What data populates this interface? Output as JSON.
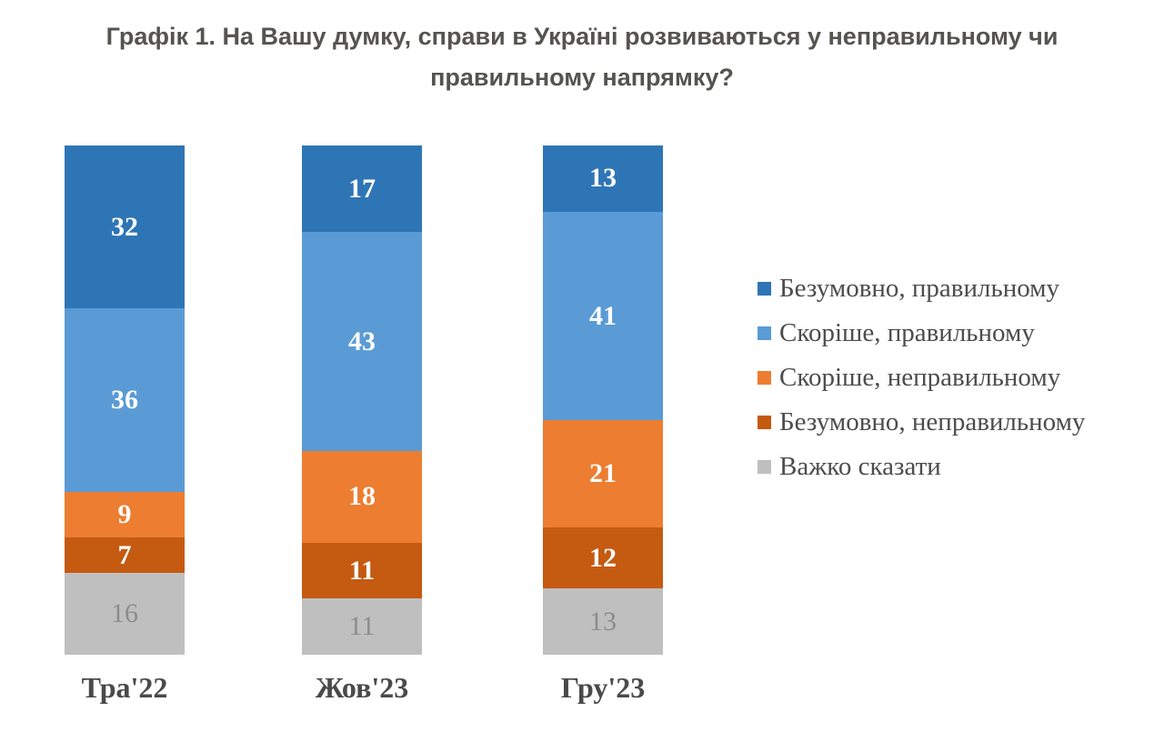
{
  "title": "Графік 1. На Вашу думку, справи в Україні розвиваються у неправильному чи правильному напрямку?",
  "colors": {
    "title_text": "#555450",
    "category_text": "#4a4a4a",
    "legend_text": "#4d4d4d",
    "background": "#ffffff"
  },
  "chart_data": {
    "type": "bar",
    "stacked": true,
    "stack_total": 100,
    "ylim": [
      0,
      100
    ],
    "grid": false,
    "legend_position": "right",
    "categories": [
      "Тра'22",
      "Жов'23",
      "Гру'23"
    ],
    "series": [
      {
        "name": "Безумовно, правильному",
        "color": "#2E75B6",
        "value_label_color": "#FFFFFF",
        "values": [
          32,
          17,
          13
        ]
      },
      {
        "name": "Скоріше, правильному",
        "color": "#5B9BD5",
        "value_label_color": "#FFFFFF",
        "values": [
          36,
          43,
          41
        ]
      },
      {
        "name": "Скоріше, неправильному",
        "color": "#ED7D31",
        "value_label_color": "#FFFFFF",
        "values": [
          9,
          18,
          21
        ]
      },
      {
        "name": "Безумовно, неправильному",
        "color": "#C55A11",
        "value_label_color": "#FFFFFF",
        "values": [
          7,
          11,
          12
        ]
      },
      {
        "name": "Важко сказати",
        "color": "#BFBFBF",
        "value_label_color": "#8C8C8C",
        "values": [
          16,
          11,
          13
        ]
      }
    ]
  }
}
